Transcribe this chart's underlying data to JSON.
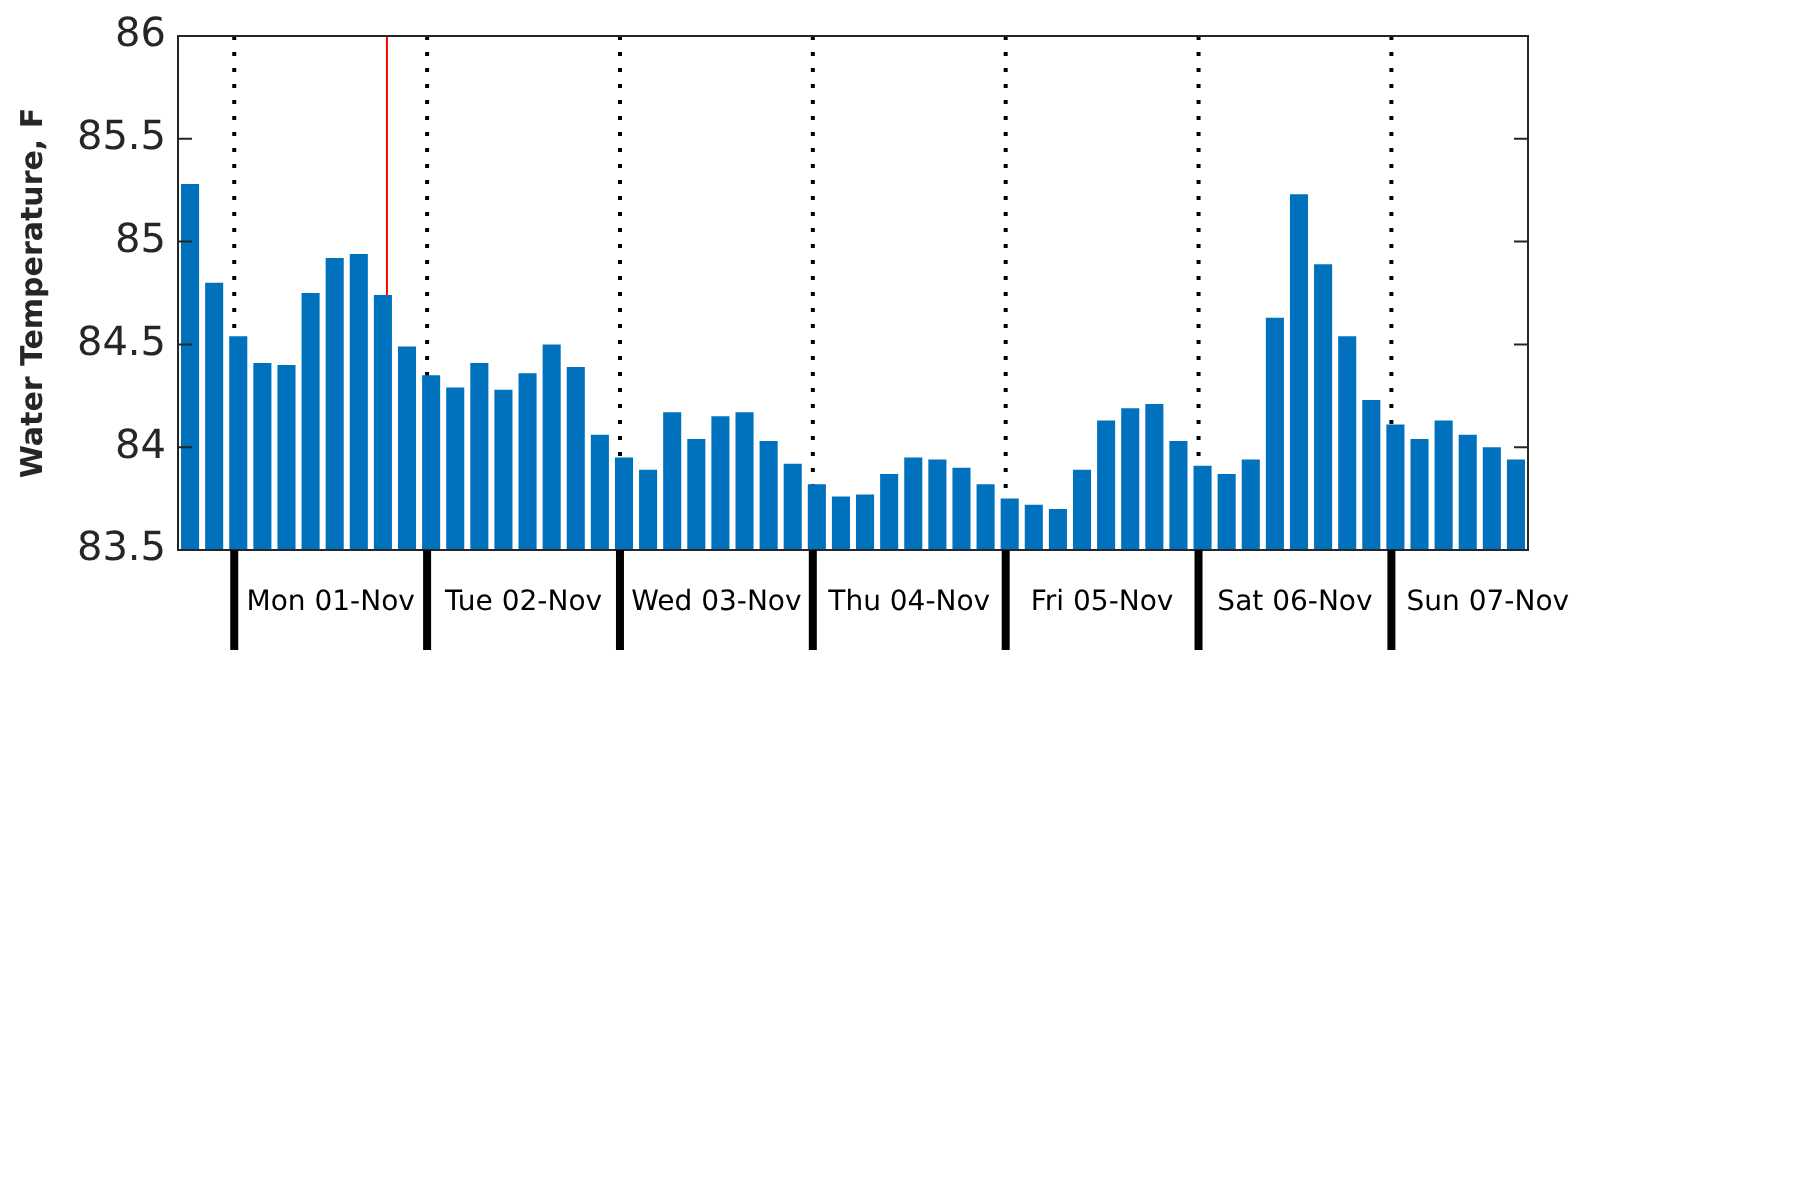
{
  "chart_data": {
    "type": "bar",
    "ylabel": "Water Temperature, F",
    "color": "#0072bd",
    "x": [
      "--10-31T18:30",
      "--10-31T21:30",
      "--11-01T00:30",
      "--11-01T03:30",
      "--11-01T06:30",
      "--11-01T09:30",
      "--11-01T12:30",
      "--11-01T15:30",
      "--11-01T18:30",
      "--11-01T21:30",
      "--11-02T00:30",
      "--11-02T03:30",
      "--11-02T06:30",
      "--11-02T09:30",
      "--11-02T12:30",
      "--11-02T15:30",
      "--11-02T18:30",
      "--11-02T21:30",
      "--11-03T00:30",
      "--11-03T03:30",
      "--11-03T06:30",
      "--11-03T09:30",
      "--11-03T12:30",
      "--11-03T15:30",
      "--11-03T18:30",
      "--11-03T21:30",
      "--11-04T00:30",
      "--11-04T03:30",
      "--11-04T06:30",
      "--11-04T09:30",
      "--11-04T12:30",
      "--11-04T15:30",
      "--11-04T18:30",
      "--11-04T21:30",
      "--11-05T00:30",
      "--11-05T03:30",
      "--11-05T06:30",
      "--11-05T09:30",
      "--11-05T12:30",
      "--11-05T15:30",
      "--11-05T18:30",
      "--11-05T21:30",
      "--11-06T00:30",
      "--11-06T03:30",
      "--11-06T06:30",
      "--11-06T09:30",
      "--11-06T12:30",
      "--11-06T15:30",
      "--11-06T18:30",
      "--11-06T21:30",
      "--11-07T00:30",
      "--11-07T03:30",
      "--11-07T06:30",
      "--11-07T09:30",
      "--11-07T12:30",
      "--11-07T15:30"
    ],
    "values": [
      85.28,
      84.8,
      84.54,
      84.41,
      84.4,
      84.75,
      84.92,
      84.94,
      84.74,
      84.49,
      84.35,
      84.29,
      84.41,
      84.28,
      84.36,
      84.5,
      84.39,
      84.06,
      83.95,
      83.89,
      84.17,
      84.04,
      84.15,
      84.17,
      84.03,
      83.92,
      83.82,
      83.76,
      83.77,
      83.87,
      83.95,
      83.94,
      83.9,
      83.82,
      83.75,
      83.72,
      83.7,
      83.89,
      84.13,
      84.19,
      84.21,
      84.03,
      83.91,
      83.87,
      83.94,
      84.63,
      85.23,
      84.89,
      84.54,
      84.23,
      84.11,
      84.04,
      84.13,
      84.06,
      84.0,
      83.94
    ],
    "xlim": [
      "--10-31T17:00",
      "--11-07T17:00"
    ],
    "xticks": [
      {
        "value": "--11-01T00:00",
        "label": null
      },
      {
        "value": "--11-01T12:00",
        "label": "Mon 01-Nov"
      },
      {
        "value": "--11-02T00:00",
        "label": null
      },
      {
        "value": "--11-02T12:00",
        "label": "Tue 02-Nov"
      },
      {
        "value": "--11-03T00:00",
        "label": null
      },
      {
        "value": "--11-03T12:00",
        "label": "Wed 03-Nov"
      },
      {
        "value": "--11-04T00:00",
        "label": null
      },
      {
        "value": "--11-04T12:00",
        "label": "Thu 04-Nov"
      },
      {
        "value": "--11-05T00:00",
        "label": null
      },
      {
        "value": "--11-05T12:00",
        "label": "Fri 05-Nov"
      },
      {
        "value": "--11-06T00:00",
        "label": null
      },
      {
        "value": "--11-06T12:00",
        "label": "Sat 06-Nov"
      },
      {
        "value": "--11-07T00:00",
        "label": null
      },
      {
        "value": "--11-07T12:00",
        "label": "Sun 07-Nov"
      }
    ],
    "ylim": [
      83.5,
      86
    ],
    "yticks": [
      83.5,
      84,
      84.5,
      85,
      85.5,
      86
    ],
    "ref_lines": [
      {
        "axis": "x",
        "value": "--11-01T00:00",
        "line_style": "dotted",
        "color": "#000000"
      },
      {
        "axis": "x",
        "value": "--11-02T00:00",
        "line_style": "dotted",
        "color": "#000000"
      },
      {
        "axis": "x",
        "value": "--11-03T00:00",
        "line_style": "dotted",
        "color": "#000000"
      },
      {
        "axis": "x",
        "value": "--11-04T00:00",
        "line_style": "dotted",
        "color": "#000000"
      },
      {
        "axis": "x",
        "value": "--11-05T00:00",
        "line_style": "dotted",
        "color": "#000000"
      },
      {
        "axis": "x",
        "value": "--11-06T00:00",
        "line_style": "dotted",
        "color": "#000000"
      },
      {
        "axis": "x",
        "value": "--11-07T00:00",
        "line_style": "dotted",
        "color": "#000000"
      },
      {
        "axis": "x",
        "value": "--11-01T19:00",
        "line_style": "solid",
        "color": "#ff0000"
      }
    ],
    "grid": false,
    "legend": false
  }
}
